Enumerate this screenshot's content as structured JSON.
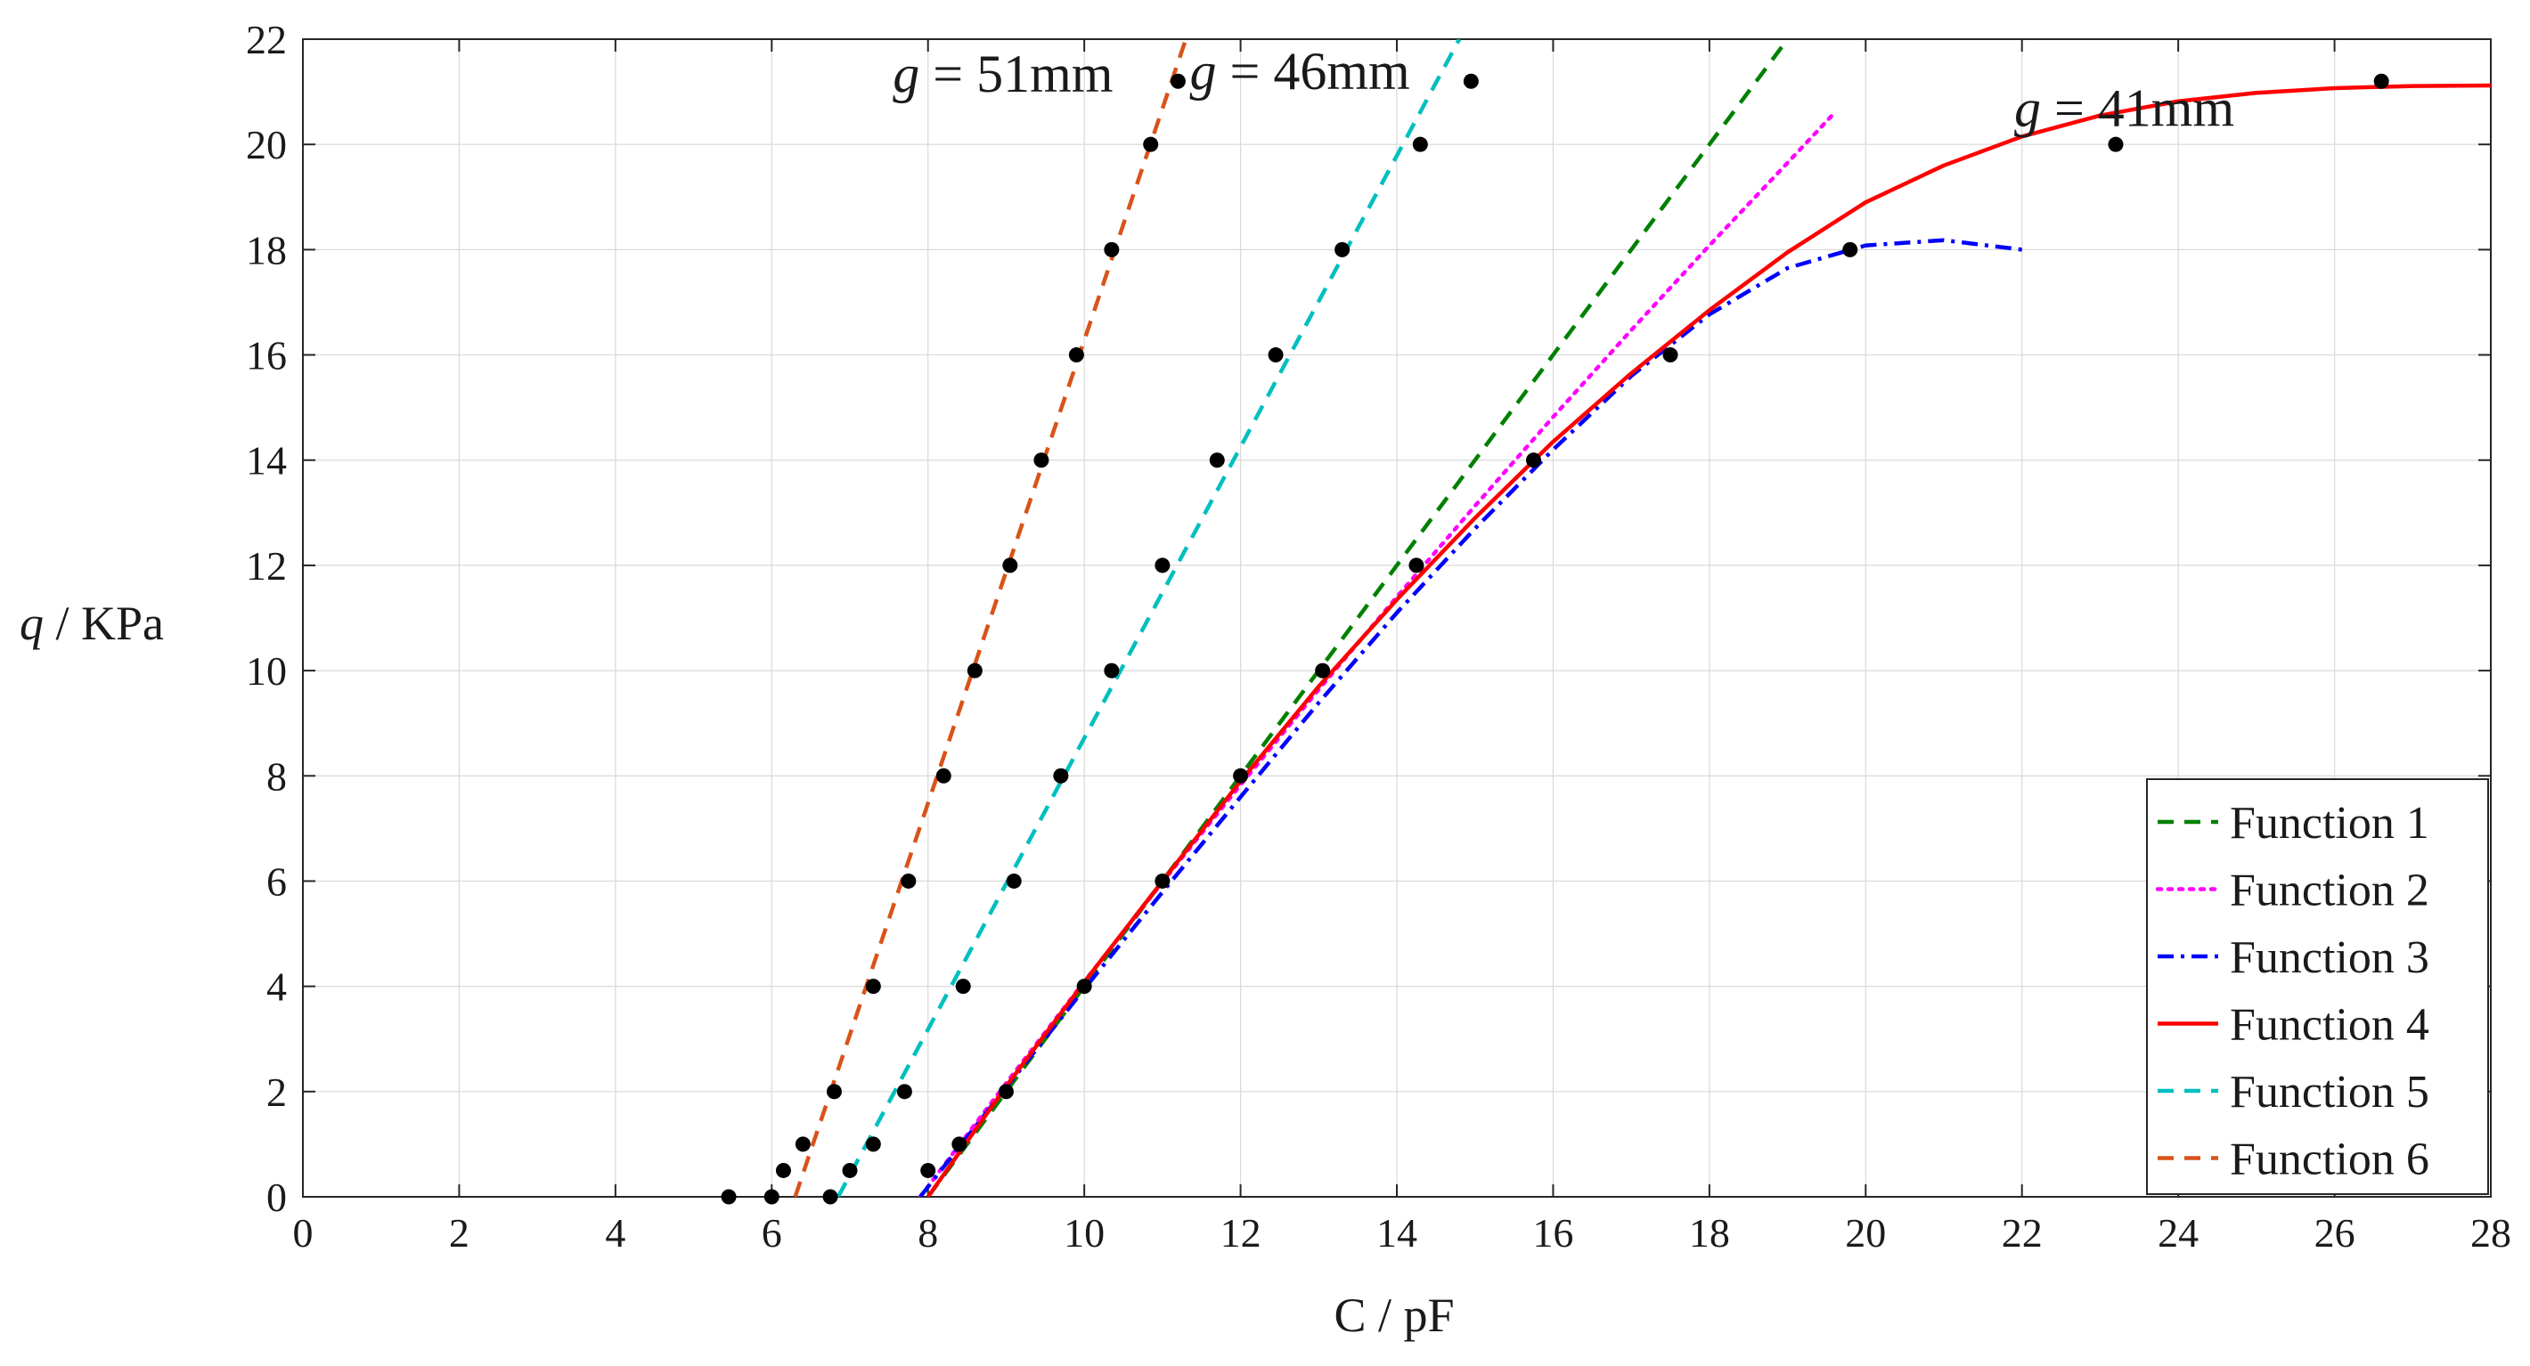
{
  "chart_data": {
    "type": "line",
    "title": "",
    "xlabel": "C / pF",
    "ylabel_var": "q",
    "ylabel_unit": "KPa",
    "xlim": [
      0,
      28
    ],
    "ylim": [
      0,
      22
    ],
    "xticks": [
      "0",
      "2",
      "4",
      "6",
      "8",
      "10",
      "12",
      "14",
      "16",
      "18",
      "20",
      "22",
      "24",
      "26",
      "28"
    ],
    "yticks": [
      "0",
      "2",
      "4",
      "6",
      "8",
      "10",
      "12",
      "14",
      "16",
      "18",
      "20",
      "22"
    ],
    "grid": true,
    "legend_position": "bottom-right",
    "colors": {
      "function1": "#008000",
      "function2": "#ff00ff",
      "function3": "#0000ff",
      "function4": "#ff0000",
      "function5": "#00bfbf",
      "function6": "#d95319",
      "markers": "#000000"
    },
    "series": [
      {
        "name": "Function 1",
        "style": "dashed",
        "x": [
          8.0,
          19.0
        ],
        "y": [
          0,
          22
        ]
      },
      {
        "name": "Function 2",
        "style": "dotted",
        "x": [
          7.9,
          9,
          10,
          11,
          12,
          13,
          14,
          15,
          16,
          17,
          18,
          19,
          19.6
        ],
        "y": [
          0,
          2.16,
          4.09,
          5.98,
          7.83,
          9.64,
          11.4,
          13.13,
          14.82,
          16.47,
          18.08,
          19.65,
          20.6
        ]
      },
      {
        "name": "Function 3",
        "style": "dashdot",
        "x": [
          7.9,
          9,
          10,
          11,
          12,
          13,
          14,
          15,
          16,
          17,
          18,
          19,
          20,
          21,
          22
        ],
        "y": [
          0,
          2.08,
          3.95,
          5.79,
          7.6,
          9.39,
          11.1,
          12.7,
          14.2,
          15.6,
          16.77,
          17.65,
          18.08,
          18.18,
          18.0
        ]
      },
      {
        "name": "Function 4",
        "style": "solid",
        "x": [
          8.0,
          9,
          10,
          11,
          12,
          13,
          14,
          15,
          16,
          17,
          18,
          19,
          20,
          21,
          22,
          23,
          24,
          25,
          26,
          27,
          28
        ],
        "y": [
          0,
          2.1,
          4.08,
          6.0,
          7.9,
          9.7,
          11.35,
          12.9,
          14.35,
          15.65,
          16.85,
          17.95,
          18.9,
          19.6,
          20.15,
          20.55,
          20.82,
          20.98,
          21.07,
          21.11,
          21.12
        ]
      },
      {
        "name": "Function 5",
        "style": "dashed",
        "x": [
          6.85,
          14.8
        ],
        "y": [
          0,
          22
        ]
      },
      {
        "name": "Function 6",
        "style": "dashed",
        "x": [
          6.3,
          11.3
        ],
        "y": [
          0,
          22
        ]
      }
    ],
    "points": [
      {
        "group": "g = 51mm",
        "x": [
          5.45,
          6.0,
          6.15,
          6.4,
          6.8,
          7.3,
          7.75,
          8.2,
          8.6,
          9.05,
          9.45,
          9.9,
          10.35,
          10.85,
          11.2
        ],
        "y": [
          0,
          0,
          0.5,
          1,
          2,
          4,
          6,
          8,
          10,
          12,
          14,
          16,
          18,
          20,
          21.2
        ]
      },
      {
        "group": "g = 46mm",
        "x": [
          6.75,
          7.0,
          7.3,
          7.7,
          8.45,
          9.1,
          9.7,
          10.35,
          11.0,
          11.7,
          12.45,
          13.3,
          14.3,
          14.95
        ],
        "y": [
          0,
          0.5,
          1,
          2,
          4,
          6,
          8,
          10,
          12,
          14,
          16,
          18,
          20,
          21.2
        ]
      },
      {
        "group": "g = 41mm",
        "x": [
          8.0,
          8.4,
          9.0,
          10.0,
          11.0,
          12.0,
          13.05,
          14.25,
          15.75,
          17.5,
          19.8,
          23.2,
          26.6
        ],
        "y": [
          0.5,
          1,
          2,
          4,
          6,
          8,
          10,
          12,
          14,
          16,
          18,
          20,
          21.2
        ]
      }
    ],
    "annotations": [
      {
        "var": "g",
        "text": "= 51mm",
        "x": 7.55,
        "y": 21.0
      },
      {
        "var": "g",
        "text": "= 46mm",
        "x": 11.35,
        "y": 21.05
      },
      {
        "var": "g",
        "text": "= 41mm",
        "x": 21.9,
        "y": 20.35
      }
    ]
  }
}
